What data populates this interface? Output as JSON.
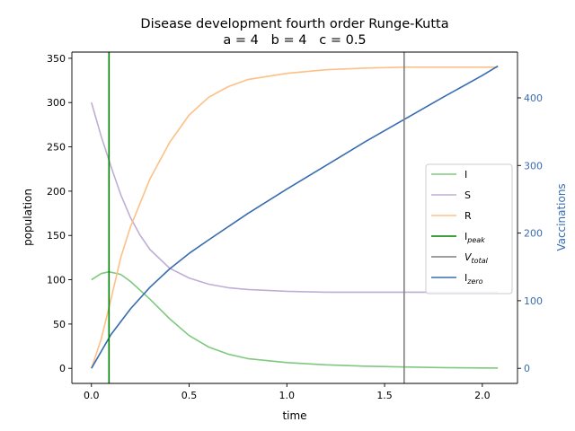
{
  "chart_data": {
    "type": "line",
    "title_line1": "Disease development fourth order Runge-Kutta",
    "title_line2": "a = 4   b = 4   c = 0.5",
    "xlabel": "time",
    "ylabel_left": "population",
    "ylabel_right": "Vaccinations",
    "xlim": [
      -0.1,
      2.18
    ],
    "ylim_left": [
      -17,
      357
    ],
    "ylim_right": [
      -22.3,
      467.7
    ],
    "xticks": [
      0.0,
      0.5,
      1.0,
      1.5,
      2.0
    ],
    "xtick_labels": [
      "0.0",
      "0.5",
      "1.0",
      "1.5",
      "2.0"
    ],
    "yticks_left": [
      0,
      50,
      100,
      150,
      200,
      250,
      300,
      350
    ],
    "yticks_left_labels": [
      "0",
      "50",
      "100",
      "150",
      "200",
      "250",
      "300",
      "350"
    ],
    "yticks_right": [
      0,
      100,
      200,
      300,
      400
    ],
    "yticks_right_labels": [
      "0",
      "100",
      "200",
      "300",
      "400"
    ],
    "grid": false,
    "legend_position": "center-right",
    "colors": {
      "I": "#7fc97f",
      "S": "#beaed4",
      "R": "#fdc086",
      "I_peak": "#008000",
      "V_total": "#808080",
      "I_zero": "#386cb0",
      "right_axis_label": "#386cb0"
    },
    "series": [
      {
        "name": "I",
        "axis": "left",
        "x": [
          0.0,
          0.05,
          0.09,
          0.15,
          0.2,
          0.3,
          0.4,
          0.5,
          0.6,
          0.7,
          0.8,
          1.0,
          1.2,
          1.4,
          1.6,
          1.8,
          2.0,
          2.08
        ],
        "y": [
          100,
          107,
          109,
          106,
          98,
          78,
          56,
          37,
          24,
          16,
          11,
          6.5,
          4,
          2.5,
          1.5,
          0.8,
          0.4,
          0.3
        ]
      },
      {
        "name": "S",
        "axis": "left",
        "x": [
          0.0,
          0.05,
          0.1,
          0.15,
          0.2,
          0.25,
          0.3,
          0.4,
          0.5,
          0.6,
          0.7,
          0.8,
          1.0,
          1.2,
          1.4,
          1.6,
          1.8,
          2.0,
          2.08
        ],
        "y": [
          300,
          262,
          228,
          196,
          170,
          150,
          134,
          113,
          102,
          95,
          91,
          89,
          87,
          86,
          86,
          86,
          86,
          86,
          86
        ]
      },
      {
        "name": "R",
        "axis": "left",
        "x": [
          0.0,
          0.05,
          0.1,
          0.15,
          0.2,
          0.3,
          0.4,
          0.5,
          0.6,
          0.7,
          0.8,
          1.0,
          1.2,
          1.4,
          1.6,
          1.8,
          2.0,
          2.08
        ],
        "y": [
          0,
          33,
          78,
          125,
          160,
          214,
          255,
          286,
          306,
          318,
          326,
          333,
          337,
          339,
          340,
          340,
          340,
          340
        ]
      },
      {
        "name": "I_zero",
        "legend_label": "I",
        "legend_sub": "zero",
        "axis": "right",
        "x": [
          0.0,
          0.1,
          0.2,
          0.3,
          0.4,
          0.5,
          0.6,
          0.8,
          1.0,
          1.2,
          1.4,
          1.6,
          1.8,
          2.0,
          2.08
        ],
        "y": [
          0,
          50,
          88,
          120,
          147,
          170,
          190,
          229,
          265,
          300,
          335,
          368,
          401,
          433,
          447
        ]
      }
    ],
    "vlines": [
      {
        "name": "I_peak",
        "legend_label": "I",
        "legend_sub": "peak",
        "x": 0.09
      },
      {
        "name": "V_total",
        "legend_label": "V",
        "legend_sub": "total",
        "x": 1.6
      }
    ],
    "legend": [
      {
        "key": "I",
        "label": "I",
        "sub": ""
      },
      {
        "key": "S",
        "label": "S",
        "sub": ""
      },
      {
        "key": "R",
        "label": "R",
        "sub": ""
      },
      {
        "key": "I_peak",
        "label": "I",
        "sub": "peak"
      },
      {
        "key": "V_total",
        "label": "V",
        "sub": "total"
      },
      {
        "key": "I_zero",
        "label": "I",
        "sub": "zero"
      }
    ]
  }
}
